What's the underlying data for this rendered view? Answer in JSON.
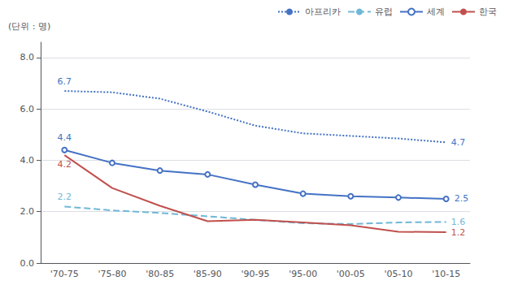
{
  "chart_data": {
    "type": "line",
    "ylabel": "(단위 : 명)",
    "categories": [
      "'70-75",
      "'75-80",
      "'80-85",
      "'85-90",
      "'90-95",
      "'95-00",
      "'00-05",
      "'05-10",
      "'10-15"
    ],
    "series": [
      {
        "name": "아프리카",
        "color": "#4472C4",
        "line_style": "dotted",
        "marker": "none",
        "values": [
          6.7,
          6.65,
          6.4,
          5.9,
          5.35,
          5.05,
          4.95,
          4.85,
          4.7
        ]
      },
      {
        "name": "유럽",
        "color": "#70B8D8",
        "line_style": "dashed",
        "marker": "none",
        "values": [
          2.2,
          2.05,
          1.95,
          1.82,
          1.68,
          1.55,
          1.52,
          1.58,
          1.6
        ]
      },
      {
        "name": "세계",
        "color": "#4472C4",
        "line_style": "solid",
        "marker": "circle",
        "values": [
          4.4,
          3.9,
          3.6,
          3.45,
          3.05,
          2.7,
          2.6,
          2.55,
          2.5
        ]
      },
      {
        "name": "한국",
        "color": "#C0504D",
        "line_style": "solid",
        "marker": "none",
        "values": [
          4.2,
          2.92,
          2.23,
          1.63,
          1.68,
          1.58,
          1.47,
          1.22,
          1.2
        ]
      }
    ],
    "ylim": [
      0.0,
      8.6
    ],
    "yticks": [
      {
        "value": 0,
        "label": "0.0"
      },
      {
        "value": 2,
        "label": "2.0"
      },
      {
        "value": 4,
        "label": "4.0"
      },
      {
        "value": 6,
        "label": "6.0"
      },
      {
        "value": 8,
        "label": "8.0"
      }
    ],
    "grid": true,
    "legend": "upper right",
    "annotations": [
      {
        "series": "세계",
        "x": "'10-15",
        "y": 2.5,
        "text": "2.5"
      },
      {
        "series": "아프리카",
        "x": "'10-15",
        "y": 4.7,
        "text": "4.7"
      },
      {
        "series": "유럽",
        "x": "'10-15",
        "y": 1.6,
        "text": "1.6"
      },
      {
        "series": "한국",
        "x": "'10-15",
        "y": 1.2,
        "text": "1.2"
      },
      {
        "series": "아프리카",
        "x": "'70-75",
        "y": 6.7,
        "text": "6.7"
      },
      {
        "series": "세계",
        "x": "'70-75",
        "y": 4.4,
        "text": "4.4"
      },
      {
        "series": "한국",
        "x": "'70-75",
        "y": 4.2,
        "text": "4.2"
      },
      {
        "series": "유럽",
        "x": "'70-75",
        "y": 2.2,
        "text": "2.2"
      }
    ]
  }
}
